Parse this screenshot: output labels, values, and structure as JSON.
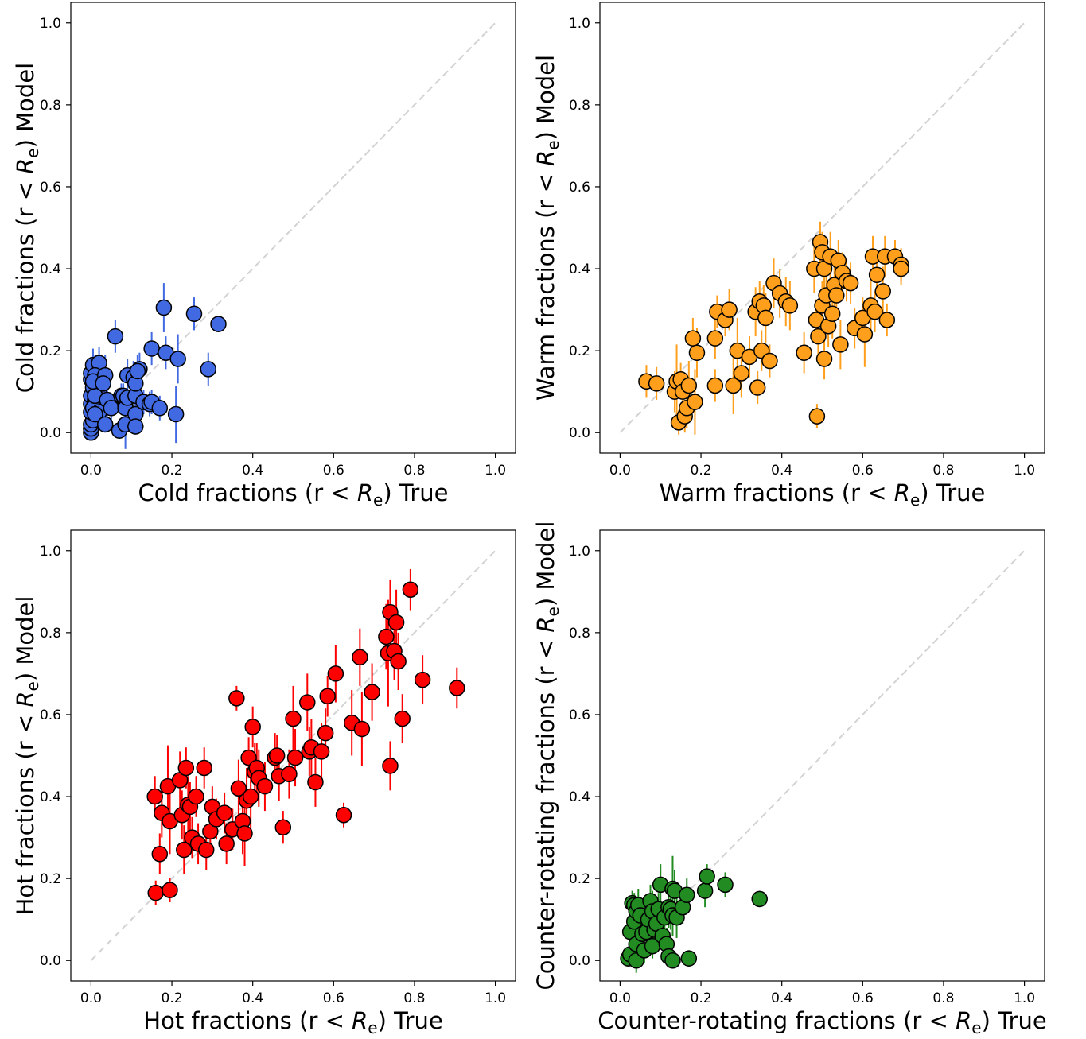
{
  "chart_data": [
    {
      "type": "scatter",
      "xlabel": {
        "pre": "Cold fractions (r < ",
        "sym": "R",
        "sub": "e",
        "post": ") True"
      },
      "ylabel": {
        "pre": "Cold fractions (r < ",
        "sym": "R",
        "sub": "e",
        "post": ") Model"
      },
      "xlim": [
        -0.05,
        1.05
      ],
      "ylim": [
        -0.05,
        1.05
      ],
      "xticks": [
        "0.0",
        "0.2",
        "0.4",
        "0.6",
        "0.8",
        "1.0"
      ],
      "yticks": [
        "0.0",
        "0.2",
        "0.4",
        "0.6",
        "0.8",
        "1.0"
      ],
      "grid": false,
      "reference_line": "dashed diagonal y = x",
      "marker_color": "#4169E1",
      "points": [
        [
          0.0,
          0.0,
          0.0
        ],
        [
          0.0,
          0.01,
          0.01
        ],
        [
          0.0,
          0.02,
          0.02
        ],
        [
          0.005,
          0.03,
          0.02
        ],
        [
          0.0,
          0.05,
          0.02
        ],
        [
          0.0,
          0.07,
          0.03
        ],
        [
          0.0,
          0.09,
          0.03
        ],
        [
          0.005,
          0.11,
          0.04
        ],
        [
          0.0,
          0.13,
          0.04
        ],
        [
          0.0,
          0.145,
          0.04
        ],
        [
          0.005,
          0.165,
          0.04
        ],
        [
          0.02,
          0.17,
          0.04
        ],
        [
          0.01,
          0.14,
          0.04
        ],
        [
          0.015,
          0.12,
          0.04
        ],
        [
          0.02,
          0.1,
          0.05
        ],
        [
          0.01,
          0.08,
          0.03
        ],
        [
          0.005,
          0.06,
          0.03
        ],
        [
          0.02,
          0.05,
          0.03
        ],
        [
          0.01,
          0.09,
          0.1
        ],
        [
          0.005,
          0.125,
          0.03
        ],
        [
          0.01,
          0.045,
          0.02
        ],
        [
          0.035,
          0.14,
          0.05
        ],
        [
          0.03,
          0.12,
          0.04
        ],
        [
          0.04,
          0.08,
          0.04
        ],
        [
          0.035,
          0.02,
          0.02
        ],
        [
          0.05,
          0.06,
          0.03
        ],
        [
          0.06,
          0.235,
          0.04
        ],
        [
          0.075,
          0.09,
          0.03
        ],
        [
          0.07,
          0.005,
          0.02
        ],
        [
          0.085,
          0.02,
          0.06
        ],
        [
          0.08,
          0.09,
          0.03
        ],
        [
          0.085,
          0.065,
          0.03
        ],
        [
          0.085,
          0.06,
          0.03
        ],
        [
          0.09,
          0.085,
          0.03
        ],
        [
          0.09,
          0.14,
          0.04
        ],
        [
          0.105,
          0.135,
          0.04
        ],
        [
          0.11,
          0.09,
          0.03
        ],
        [
          0.11,
          0.12,
          0.04
        ],
        [
          0.11,
          0.045,
          0.03
        ],
        [
          0.11,
          0.015,
          0.02
        ],
        [
          0.12,
          0.155,
          0.04
        ],
        [
          0.115,
          0.15,
          0.04
        ],
        [
          0.13,
          0.075,
          0.03
        ],
        [
          0.145,
          0.07,
          0.03
        ],
        [
          0.15,
          0.075,
          0.03
        ],
        [
          0.15,
          0.205,
          0.04
        ],
        [
          0.17,
          0.06,
          0.03
        ],
        [
          0.18,
          0.305,
          0.06
        ],
        [
          0.185,
          0.195,
          0.04
        ],
        [
          0.21,
          0.045,
          0.07
        ],
        [
          0.215,
          0.18,
          0.06
        ],
        [
          0.255,
          0.29,
          0.04
        ],
        [
          0.29,
          0.155,
          0.04
        ],
        [
          0.315,
          0.265,
          0.02
        ]
      ]
    },
    {
      "type": "scatter",
      "xlabel": {
        "pre": "Warm fractions (r < ",
        "sym": "R",
        "sub": "e",
        "post": ") True"
      },
      "ylabel": {
        "pre": "Warm fractions (r < ",
        "sym": "R",
        "sub": "e",
        "post": ") Model"
      },
      "xlim": [
        -0.05,
        1.05
      ],
      "ylim": [
        -0.05,
        1.05
      ],
      "xticks": [
        "0.0",
        "0.2",
        "0.4",
        "0.6",
        "0.8",
        "1.0"
      ],
      "yticks": [
        "0.0",
        "0.2",
        "0.4",
        "0.6",
        "0.8",
        "1.0"
      ],
      "grid": false,
      "reference_line": "dashed diagonal y = x",
      "marker_color": "#FF9F1C",
      "points": [
        [
          0.065,
          0.125,
          0.04
        ],
        [
          0.09,
          0.12,
          0.04
        ],
        [
          0.135,
          0.1,
          0.05
        ],
        [
          0.14,
          0.125,
          0.09
        ],
        [
          0.145,
          0.025,
          0.03
        ],
        [
          0.15,
          0.13,
          0.04
        ],
        [
          0.155,
          0.1,
          0.05
        ],
        [
          0.16,
          0.04,
          0.04
        ],
        [
          0.165,
          0.06,
          0.05
        ],
        [
          0.17,
          0.115,
          0.06
        ],
        [
          0.18,
          0.23,
          0.05
        ],
        [
          0.185,
          0.075,
          0.08
        ],
        [
          0.19,
          0.195,
          0.06
        ],
        [
          0.235,
          0.115,
          0.04
        ],
        [
          0.235,
          0.23,
          0.05
        ],
        [
          0.24,
          0.295,
          0.04
        ],
        [
          0.26,
          0.275,
          0.04
        ],
        [
          0.27,
          0.3,
          0.05
        ],
        [
          0.28,
          0.115,
          0.07
        ],
        [
          0.29,
          0.2,
          0.08
        ],
        [
          0.3,
          0.145,
          0.06
        ],
        [
          0.32,
          0.185,
          0.05
        ],
        [
          0.335,
          0.295,
          0.06
        ],
        [
          0.34,
          0.11,
          0.04
        ],
        [
          0.345,
          0.32,
          0.05
        ],
        [
          0.35,
          0.2,
          0.05
        ],
        [
          0.355,
          0.31,
          0.05
        ],
        [
          0.36,
          0.28,
          0.06
        ],
        [
          0.37,
          0.175,
          0.04
        ],
        [
          0.38,
          0.365,
          0.06
        ],
        [
          0.395,
          0.34,
          0.06
        ],
        [
          0.41,
          0.32,
          0.06
        ],
        [
          0.42,
          0.31,
          0.06
        ],
        [
          0.455,
          0.195,
          0.05
        ],
        [
          0.48,
          0.4,
          0.06
        ],
        [
          0.485,
          0.275,
          0.05
        ],
        [
          0.487,
          0.04,
          0.03
        ],
        [
          0.49,
          0.235,
          0.06
        ],
        [
          0.495,
          0.465,
          0.05
        ],
        [
          0.5,
          0.31,
          0.06
        ],
        [
          0.5,
          0.44,
          0.05
        ],
        [
          0.505,
          0.18,
          0.05
        ],
        [
          0.505,
          0.4,
          0.05
        ],
        [
          0.51,
          0.335,
          0.07
        ],
        [
          0.515,
          0.26,
          0.05
        ],
        [
          0.52,
          0.43,
          0.06
        ],
        [
          0.525,
          0.29,
          0.06
        ],
        [
          0.53,
          0.36,
          0.06
        ],
        [
          0.535,
          0.335,
          0.06
        ],
        [
          0.54,
          0.42,
          0.05
        ],
        [
          0.545,
          0.215,
          0.06
        ],
        [
          0.55,
          0.39,
          0.05
        ],
        [
          0.56,
          0.37,
          0.05
        ],
        [
          0.57,
          0.365,
          0.05
        ],
        [
          0.58,
          0.255,
          0.05
        ],
        [
          0.6,
          0.28,
          0.05
        ],
        [
          0.605,
          0.24,
          0.08
        ],
        [
          0.62,
          0.31,
          0.06
        ],
        [
          0.625,
          0.43,
          0.05
        ],
        [
          0.63,
          0.295,
          0.05
        ],
        [
          0.635,
          0.385,
          0.05
        ],
        [
          0.65,
          0.345,
          0.06
        ],
        [
          0.655,
          0.43,
          0.05
        ],
        [
          0.66,
          0.275,
          0.04
        ],
        [
          0.68,
          0.43,
          0.04
        ],
        [
          0.695,
          0.41,
          0.04
        ],
        [
          0.695,
          0.4,
          0.04
        ]
      ]
    },
    {
      "type": "scatter",
      "xlabel": {
        "pre": "Hot fractions (r < ",
        "sym": "R",
        "sub": "e",
        "post": ") True"
      },
      "ylabel": {
        "pre": "Hot fractions (r < ",
        "sym": "R",
        "sub": "e",
        "post": ") Model"
      },
      "xlim": [
        -0.05,
        1.05
      ],
      "ylim": [
        -0.05,
        1.05
      ],
      "xticks": [
        "0.0",
        "0.2",
        "0.4",
        "0.6",
        "0.8",
        "1.0"
      ],
      "yticks": [
        "0.0",
        "0.2",
        "0.4",
        "0.6",
        "0.8",
        "1.0"
      ],
      "grid": false,
      "reference_line": "dashed diagonal y = x",
      "marker_color": "#FF0000",
      "points": [
        [
          0.158,
          0.4,
          0.05
        ],
        [
          0.16,
          0.165,
          0.03
        ],
        [
          0.17,
          0.26,
          0.05
        ],
        [
          0.175,
          0.36,
          0.06
        ],
        [
          0.19,
          0.425,
          0.1
        ],
        [
          0.195,
          0.34,
          0.08
        ],
        [
          0.195,
          0.172,
          0.03
        ],
        [
          0.22,
          0.44,
          0.07
        ],
        [
          0.225,
          0.355,
          0.06
        ],
        [
          0.23,
          0.27,
          0.06
        ],
        [
          0.235,
          0.47,
          0.05
        ],
        [
          0.24,
          0.38,
          0.07
        ],
        [
          0.245,
          0.375,
          0.06
        ],
        [
          0.25,
          0.3,
          0.05
        ],
        [
          0.26,
          0.4,
          0.05
        ],
        [
          0.265,
          0.285,
          0.05
        ],
        [
          0.28,
          0.47,
          0.05
        ],
        [
          0.285,
          0.27,
          0.05
        ],
        [
          0.295,
          0.315,
          0.05
        ],
        [
          0.3,
          0.375,
          0.05
        ],
        [
          0.31,
          0.345,
          0.05
        ],
        [
          0.33,
          0.36,
          0.05
        ],
        [
          0.335,
          0.285,
          0.05
        ],
        [
          0.35,
          0.32,
          0.05
        ],
        [
          0.36,
          0.64,
          0.03
        ],
        [
          0.365,
          0.42,
          0.07
        ],
        [
          0.375,
          0.34,
          0.08
        ],
        [
          0.38,
          0.31,
          0.08
        ],
        [
          0.385,
          0.39,
          0.08
        ],
        [
          0.39,
          0.495,
          0.05
        ],
        [
          0.395,
          0.4,
          0.08
        ],
        [
          0.4,
          0.57,
          0.05
        ],
        [
          0.405,
          0.46,
          0.07
        ],
        [
          0.41,
          0.47,
          0.06
        ],
        [
          0.415,
          0.445,
          0.07
        ],
        [
          0.43,
          0.425,
          0.06
        ],
        [
          0.455,
          0.495,
          0.06
        ],
        [
          0.46,
          0.5,
          0.05
        ],
        [
          0.465,
          0.45,
          0.06
        ],
        [
          0.475,
          0.325,
          0.04
        ],
        [
          0.49,
          0.455,
          0.06
        ],
        [
          0.5,
          0.59,
          0.08
        ],
        [
          0.505,
          0.495,
          0.07
        ],
        [
          0.535,
          0.63,
          0.07
        ],
        [
          0.54,
          0.51,
          0.06
        ],
        [
          0.545,
          0.52,
          0.07
        ],
        [
          0.555,
          0.435,
          0.06
        ],
        [
          0.57,
          0.51,
          0.07
        ],
        [
          0.58,
          0.555,
          0.06
        ],
        [
          0.585,
          0.645,
          0.05
        ],
        [
          0.605,
          0.7,
          0.07
        ],
        [
          0.625,
          0.355,
          0.03
        ],
        [
          0.645,
          0.58,
          0.08
        ],
        [
          0.665,
          0.74,
          0.07
        ],
        [
          0.67,
          0.565,
          0.09
        ],
        [
          0.695,
          0.655,
          0.07
        ],
        [
          0.73,
          0.79,
          0.08
        ],
        [
          0.735,
          0.75,
          0.13
        ],
        [
          0.74,
          0.85,
          0.08
        ],
        [
          0.74,
          0.475,
          0.06
        ],
        [
          0.75,
          0.755,
          0.07
        ],
        [
          0.755,
          0.825,
          0.08
        ],
        [
          0.76,
          0.73,
          0.07
        ],
        [
          0.77,
          0.59,
          0.06
        ],
        [
          0.79,
          0.905,
          0.05
        ],
        [
          0.82,
          0.685,
          0.06
        ],
        [
          0.905,
          0.665,
          0.05
        ]
      ]
    },
    {
      "type": "scatter",
      "xlabel": {
        "pre": "Counter-rotating fractions (r < ",
        "sym": "R",
        "sub": "e",
        "post": ") True"
      },
      "ylabel": {
        "pre": "Counter-rotating fractions (r < ",
        "sym": "R",
        "sub": "e",
        "post": ") Model"
      },
      "xlim": [
        -0.05,
        1.05
      ],
      "ylim": [
        -0.05,
        1.05
      ],
      "xticks": [
        "0.0",
        "0.2",
        "0.4",
        "0.6",
        "0.8",
        "1.0"
      ],
      "yticks": [
        "0.0",
        "0.2",
        "0.4",
        "0.6",
        "0.8",
        "1.0"
      ],
      "grid": false,
      "reference_line": "dashed diagonal y = x",
      "marker_color": "#228B22",
      "points": [
        [
          0.02,
          0.005,
          0.02
        ],
        [
          0.025,
          0.015,
          0.02
        ],
        [
          0.025,
          0.07,
          0.03
        ],
        [
          0.03,
          0.14,
          0.03
        ],
        [
          0.035,
          0.135,
          0.03
        ],
        [
          0.035,
          0.095,
          0.03
        ],
        [
          0.04,
          0.04,
          0.03
        ],
        [
          0.04,
          0.12,
          0.03
        ],
        [
          0.04,
          0.0,
          0.03
        ],
        [
          0.045,
          0.135,
          0.04
        ],
        [
          0.05,
          0.11,
          0.04
        ],
        [
          0.055,
          0.065,
          0.04
        ],
        [
          0.06,
          0.025,
          0.03
        ],
        [
          0.065,
          0.07,
          0.04
        ],
        [
          0.07,
          0.1,
          0.04
        ],
        [
          0.075,
          0.145,
          0.04
        ],
        [
          0.08,
          0.12,
          0.05
        ],
        [
          0.08,
          0.035,
          0.03
        ],
        [
          0.085,
          0.075,
          0.04
        ],
        [
          0.09,
          0.09,
          0.04
        ],
        [
          0.095,
          0.125,
          0.04
        ],
        [
          0.1,
          0.185,
          0.05
        ],
        [
          0.105,
          0.06,
          0.03
        ],
        [
          0.11,
          0.105,
          0.04
        ],
        [
          0.115,
          0.04,
          0.04
        ],
        [
          0.12,
          0.13,
          0.05
        ],
        [
          0.12,
          0.01,
          0.02
        ],
        [
          0.125,
          0.125,
          0.05
        ],
        [
          0.13,
          0.11,
          0.05
        ],
        [
          0.13,
          0.175,
          0.08
        ],
        [
          0.13,
          0.0,
          0.02
        ],
        [
          0.135,
          0.17,
          0.05
        ],
        [
          0.14,
          0.105,
          0.05
        ],
        [
          0.155,
          0.13,
          0.04
        ],
        [
          0.165,
          0.16,
          0.04
        ],
        [
          0.17,
          0.005,
          0.02
        ],
        [
          0.21,
          0.17,
          0.04
        ],
        [
          0.215,
          0.205,
          0.03
        ],
        [
          0.26,
          0.185,
          0.03
        ],
        [
          0.345,
          0.15,
          0.02
        ]
      ]
    }
  ]
}
